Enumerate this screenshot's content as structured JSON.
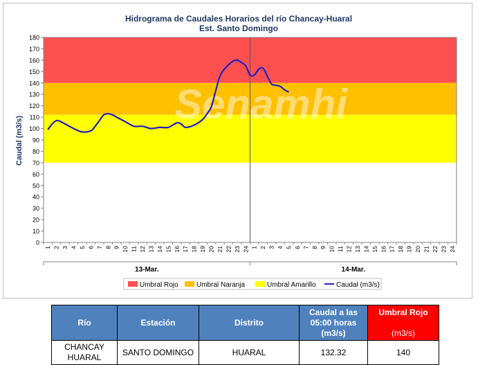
{
  "chart_data": {
    "type": "line",
    "title": "Hidrograma de Caudales Horarios del río Chancay-Huaral",
    "subtitle": "Est. Santo Domingo",
    "ylabel": "Caudal  (m3/s)",
    "ylim": [
      0,
      180
    ],
    "yticks": [
      "0",
      "10",
      "20",
      "30",
      "40",
      "50",
      "60",
      "70",
      "80",
      "90",
      "100",
      "110",
      "120",
      "130",
      "140",
      "150",
      "160",
      "170",
      "180"
    ],
    "xtick_labels": [
      "1",
      "2",
      "3",
      "4",
      "5",
      "6",
      "7",
      "8",
      "9",
      "10",
      "11",
      "12",
      "13",
      "14",
      "15",
      "16",
      "17",
      "18",
      "19",
      "20",
      "21",
      "22",
      "23",
      "24",
      "1",
      "2",
      "3",
      "4",
      "5",
      "6",
      "7",
      "8",
      "9",
      "10",
      "11",
      "12",
      "13",
      "14",
      "15",
      "16",
      "17",
      "18",
      "19",
      "20",
      "21",
      "22",
      "23",
      "24"
    ],
    "day_labels": [
      "13-Mar.",
      "14-Mar."
    ],
    "bands": [
      {
        "name": "Umbral Rojo",
        "from": 140,
        "to": 180,
        "color": "#ff5050"
      },
      {
        "name": "Umbral Naranja",
        "from": 112,
        "to": 140,
        "color": "#ffc000"
      },
      {
        "name": "Umbral Amarillo",
        "from": 70,
        "to": 112,
        "color": "#ffff00"
      }
    ],
    "series": [
      {
        "name": "Caudal (m3/s)",
        "color": "#1f1fbf",
        "x": [
          1,
          1.5,
          2,
          2.5,
          3,
          4,
          5,
          6,
          6.5,
          7,
          7.5,
          8,
          8.5,
          9,
          10,
          11,
          12,
          13,
          14,
          15,
          16,
          16.5,
          17,
          18,
          19,
          19.5,
          20,
          20.5,
          21,
          21.5,
          22,
          22.5,
          23,
          23.5,
          24,
          24.5,
          25,
          25.5,
          26,
          26.5,
          27,
          27.5,
          28,
          28.5,
          29
        ],
        "y": [
          99,
          104,
          107,
          106,
          104,
          100,
          97,
          98,
          102,
          107,
          112,
          113,
          112,
          110,
          106,
          102,
          102,
          100,
          101,
          101,
          105,
          104,
          101,
          103,
          108,
          113,
          119,
          133,
          146,
          152,
          156,
          159,
          160,
          158,
          155,
          147,
          147,
          152,
          153,
          146,
          139,
          138,
          137,
          134,
          132
        ]
      }
    ],
    "legend": [
      "Umbral Rojo",
      "Umbral Naranja",
      "Umbral Amarillo",
      "Caudal (m3/s)"
    ],
    "legend_position": "bottom",
    "watermark": "Senamhi",
    "grid": false
  },
  "table": {
    "headers": [
      "Río",
      "Estación",
      "Distrito",
      "Caudal a las 05:00 horas",
      "(m3/s)",
      "Umbral Rojo",
      "(m3/s)"
    ],
    "row": [
      "CHANCAY HUARAL",
      "SANTO DOMINGO",
      "HUARAL",
      "132.32",
      "140"
    ]
  }
}
